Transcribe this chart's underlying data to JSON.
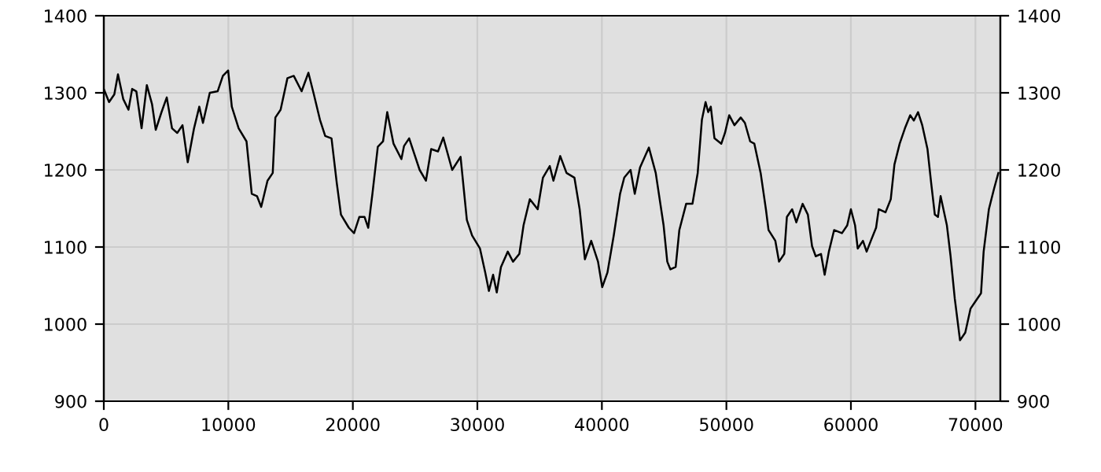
{
  "chart_data": {
    "type": "line",
    "x": [
      0,
      421,
      843,
      1138,
      1559,
      1980,
      2275,
      2613,
      3034,
      3455,
      3876,
      4171,
      4635,
      5056,
      5477,
      5899,
      6320,
      6741,
      7247,
      7668,
      7963,
      8511,
      9142,
      9564,
      9986,
      10280,
      10828,
      11460,
      11882,
      12303,
      12640,
      13146,
      13567,
      13778,
      14199,
      14747,
      15253,
      15885,
      16432,
      16854,
      17360,
      17781,
      18287,
      18709,
      19046,
      19678,
      20098,
      20519,
      20941,
      21235,
      21572,
      22004,
      22425,
      22762,
      23268,
      23900,
      24110,
      24522,
      25364,
      25870,
      26291,
      26839,
      27261,
      27977,
      28651,
      29157,
      29578,
      30210,
      30630,
      30926,
      31263,
      31558,
      31895,
      32443,
      32864,
      33370,
      33707,
      34213,
      34845,
      35266,
      35814,
      36109,
      36656,
      37162,
      37794,
      38215,
      38637,
      39143,
      39690,
      40027,
      40448,
      40954,
      41460,
      41797,
      42303,
      42640,
      43061,
      43777,
      44325,
      44957,
      45252,
      45504,
      45925,
      46221,
      46768,
      47274,
      47695,
      48032,
      48327,
      48538,
      48748,
      49043,
      49591,
      49886,
      50223,
      50645,
      51151,
      51487,
      51909,
      52245,
      52751,
      53173,
      53383,
      53931,
      54226,
      54647,
      54858,
      55279,
      55616,
      56122,
      56543,
      56880,
      57175,
      57597,
      57891,
      58229,
      58650,
      59282,
      59703,
      59998,
      60335,
      60546,
      60967,
      61262,
      61599,
      62021,
      62231,
      62779,
      63200,
      63495,
      63916,
      64338,
      64760,
      65054,
      65391,
      65728,
      66150,
      66445,
      66739,
      66992,
      67203,
      67709,
      68004,
      68341,
      68762,
      69184,
      69605,
      69942,
      70448,
      70659,
      71080,
      71502,
      71839
    ],
    "series": [
      {
        "color": "#000000",
        "values": [
          1305,
          1288,
          1298,
          1324,
          1292,
          1278,
          1305,
          1302,
          1254,
          1310,
          1285,
          1252,
          1275,
          1294,
          1254,
          1248,
          1258,
          1210,
          1254,
          1282,
          1261,
          1300,
          1302,
          1322,
          1329,
          1282,
          1254,
          1237,
          1169,
          1166,
          1152,
          1186,
          1196,
          1268,
          1278,
          1319,
          1322,
          1302,
          1326,
          1299,
          1265,
          1244,
          1241,
          1183,
          1142,
          1125,
          1118,
          1139,
          1139,
          1125,
          1169,
          1230,
          1237,
          1275,
          1234,
          1214,
          1231,
          1241,
          1200,
          1186,
          1227,
          1224,
          1242,
          1200,
          1217,
          1135,
          1115,
          1098,
          1067,
          1043,
          1064,
          1041,
          1074,
          1094,
          1081,
          1091,
          1128,
          1162,
          1149,
          1190,
          1205,
          1186,
          1218,
          1196,
          1190,
          1149,
          1084,
          1108,
          1081,
          1048,
          1067,
          1115,
          1169,
          1190,
          1200,
          1169,
          1203,
          1229,
          1196,
          1128,
          1081,
          1071,
          1074,
          1122,
          1156,
          1156,
          1196,
          1265,
          1288,
          1275,
          1282,
          1241,
          1234,
          1248,
          1271,
          1258,
          1268,
          1261,
          1237,
          1234,
          1196,
          1149,
          1122,
          1108,
          1081,
          1091,
          1139,
          1149,
          1132,
          1156,
          1142,
          1101,
          1088,
          1091,
          1064,
          1094,
          1122,
          1118,
          1128,
          1149,
          1128,
          1098,
          1108,
          1094,
          1108,
          1125,
          1149,
          1145,
          1162,
          1207,
          1234,
          1254,
          1271,
          1264,
          1275,
          1258,
          1227,
          1183,
          1142,
          1139,
          1166,
          1128,
          1088,
          1033,
          979,
          989,
          1020,
          1028,
          1040,
          1094,
          1149,
          1176,
          1196
        ]
      }
    ],
    "xlim": [
      0,
      72000
    ],
    "xticks": [
      0,
      10000,
      20000,
      30000,
      40000,
      50000,
      60000,
      70000
    ],
    "ylim": [
      900,
      1400
    ],
    "yticks": [
      900,
      1000,
      1100,
      1200,
      1300,
      1400
    ],
    "y2lim": [
      900,
      1400
    ],
    "y2ticks": [
      900,
      1000,
      1100,
      1200,
      1300,
      1400
    ],
    "grid": true,
    "legend": false,
    "marker": "none",
    "line_style": "solid"
  }
}
